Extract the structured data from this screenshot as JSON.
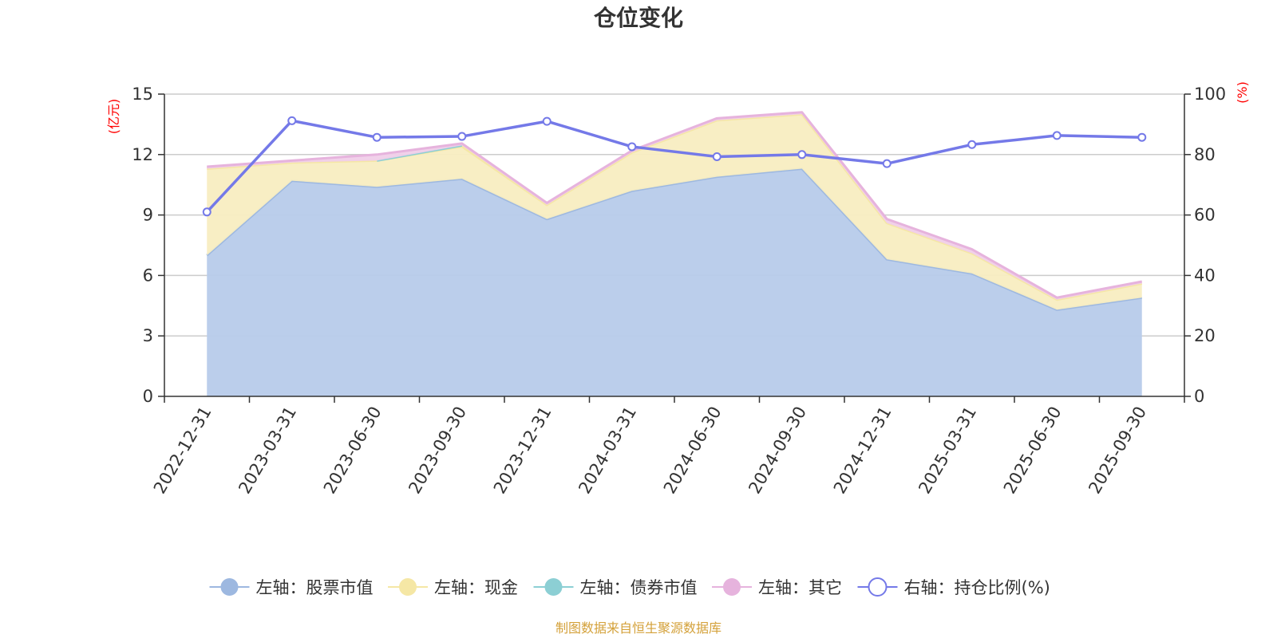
{
  "chart_data": {
    "type": "area",
    "title": "仓位变化",
    "left_axis": {
      "unit": "(亿元)",
      "ylim": [
        0,
        15
      ],
      "ticks": [
        0,
        3,
        6,
        9,
        12,
        15
      ]
    },
    "right_axis": {
      "unit": "(%)",
      "ylim": [
        0,
        100
      ],
      "ticks": [
        0,
        20,
        40,
        60,
        80,
        100
      ]
    },
    "categories": [
      "2022-12-31",
      "2023-03-31",
      "2023-06-30",
      "2023-09-30",
      "2023-12-31",
      "2024-03-31",
      "2024-06-30",
      "2024-09-30",
      "2024-12-31",
      "2025-03-31",
      "2025-06-30",
      "2025-09-30"
    ],
    "grid": true,
    "legend_position": "bottom",
    "stacked_series": [
      {
        "name": "左轴：股票市值",
        "axis": "left",
        "color": "#9db8e0",
        "fill": "#b7cbea",
        "values": [
          7.0,
          10.7,
          10.4,
          10.8,
          8.8,
          10.2,
          10.9,
          11.3,
          6.8,
          6.1,
          4.3,
          4.9
        ]
      },
      {
        "name": "左轴：现金",
        "axis": "left",
        "color": "#f5e7a5",
        "fill": "#f8edc1",
        "values": [
          4.3,
          0.9,
          1.3,
          1.6,
          0.7,
          1.9,
          2.8,
          2.7,
          1.8,
          1.0,
          0.5,
          0.7
        ]
      },
      {
        "name": "左轴：债券市值",
        "axis": "left",
        "color": "#8ccfd4",
        "fill": "#bde3e6",
        "values": [
          null,
          null,
          0.0,
          0.05,
          null,
          null,
          null,
          null,
          null,
          null,
          null,
          null
        ]
      },
      {
        "name": "左轴：其它",
        "axis": "left",
        "color": "#e6b3dd",
        "fill": "#f0cfe9",
        "values": [
          0.1,
          0.1,
          0.3,
          0.1,
          0.1,
          0.1,
          0.1,
          0.1,
          0.2,
          0.2,
          0.1,
          0.1
        ]
      }
    ],
    "line_series": [
      {
        "name": "右轴：持仓比例(%)",
        "axis": "right",
        "color": "#7479e8",
        "values": [
          61.0,
          91.2,
          85.7,
          86.0,
          91.0,
          82.6,
          79.3,
          80.0,
          77.0,
          83.3,
          86.3,
          85.7
        ]
      }
    ]
  },
  "footer": {
    "source": "制图数据来自恒生聚源数据库"
  }
}
